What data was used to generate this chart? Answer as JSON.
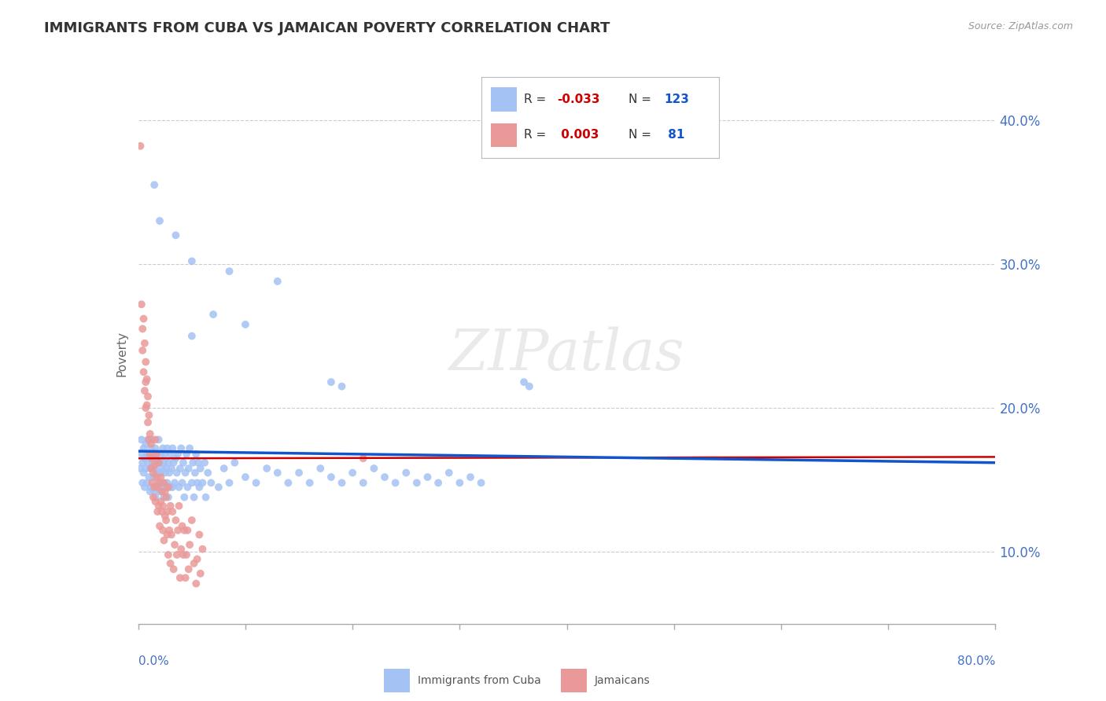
{
  "title": "IMMIGRANTS FROM CUBA VS JAMAICAN POVERTY CORRELATION CHART",
  "source": "Source: ZipAtlas.com",
  "ylabel": "Poverty",
  "xmin": 0.0,
  "xmax": 0.8,
  "ymin": 0.05,
  "ymax": 0.425,
  "yticks": [
    0.1,
    0.2,
    0.3,
    0.4
  ],
  "ytick_labels": [
    "10.0%",
    "20.0%",
    "30.0%",
    "40.0%"
  ],
  "blue_color": "#a4c2f4",
  "pink_color": "#ea9999",
  "blue_line_color": "#1155cc",
  "pink_line_color": "#cc0000",
  "R_blue": -0.033,
  "N_blue": 123,
  "R_pink": 0.003,
  "N_pink": 81,
  "legend_label_blue": "Immigrants from Cuba",
  "legend_label_pink": "Jamaicans",
  "watermark": "ZIPatlas",
  "blue_trend_start": 0.17,
  "blue_trend_end": 0.162,
  "pink_trend_start": 0.165,
  "pink_trend_end": 0.166,
  "blue_points": [
    [
      0.002,
      0.158
    ],
    [
      0.003,
      0.168
    ],
    [
      0.003,
      0.178
    ],
    [
      0.004,
      0.148
    ],
    [
      0.004,
      0.162
    ],
    [
      0.005,
      0.172
    ],
    [
      0.005,
      0.155
    ],
    [
      0.006,
      0.165
    ],
    [
      0.006,
      0.145
    ],
    [
      0.007,
      0.175
    ],
    [
      0.007,
      0.158
    ],
    [
      0.008,
      0.168
    ],
    [
      0.008,
      0.148
    ],
    [
      0.009,
      0.162
    ],
    [
      0.009,
      0.178
    ],
    [
      0.01,
      0.152
    ],
    [
      0.01,
      0.168
    ],
    [
      0.011,
      0.142
    ],
    [
      0.011,
      0.158
    ],
    [
      0.012,
      0.172
    ],
    [
      0.012,
      0.145
    ],
    [
      0.013,
      0.162
    ],
    [
      0.013,
      0.178
    ],
    [
      0.014,
      0.152
    ],
    [
      0.014,
      0.168
    ],
    [
      0.015,
      0.142
    ],
    [
      0.015,
      0.158
    ],
    [
      0.016,
      0.172
    ],
    [
      0.016,
      0.138
    ],
    [
      0.017,
      0.155
    ],
    [
      0.017,
      0.168
    ],
    [
      0.018,
      0.145
    ],
    [
      0.018,
      0.162
    ],
    [
      0.019,
      0.178
    ],
    [
      0.019,
      0.148
    ],
    [
      0.02,
      0.162
    ],
    [
      0.02,
      0.142
    ],
    [
      0.021,
      0.155
    ],
    [
      0.021,
      0.168
    ],
    [
      0.022,
      0.145
    ],
    [
      0.022,
      0.158
    ],
    [
      0.023,
      0.172
    ],
    [
      0.023,
      0.148
    ],
    [
      0.024,
      0.162
    ],
    [
      0.024,
      0.138
    ],
    [
      0.025,
      0.155
    ],
    [
      0.025,
      0.168
    ],
    [
      0.026,
      0.145
    ],
    [
      0.026,
      0.158
    ],
    [
      0.027,
      0.172
    ],
    [
      0.027,
      0.148
    ],
    [
      0.028,
      0.162
    ],
    [
      0.028,
      0.138
    ],
    [
      0.029,
      0.155
    ],
    [
      0.03,
      0.145
    ],
    [
      0.03,
      0.168
    ],
    [
      0.031,
      0.158
    ],
    [
      0.032,
      0.172
    ],
    [
      0.032,
      0.145
    ],
    [
      0.033,
      0.162
    ],
    [
      0.034,
      0.148
    ],
    [
      0.035,
      0.165
    ],
    [
      0.036,
      0.155
    ],
    [
      0.037,
      0.168
    ],
    [
      0.038,
      0.145
    ],
    [
      0.039,
      0.158
    ],
    [
      0.04,
      0.172
    ],
    [
      0.041,
      0.148
    ],
    [
      0.042,
      0.162
    ],
    [
      0.043,
      0.138
    ],
    [
      0.044,
      0.155
    ],
    [
      0.045,
      0.168
    ],
    [
      0.046,
      0.145
    ],
    [
      0.047,
      0.158
    ],
    [
      0.048,
      0.172
    ],
    [
      0.05,
      0.148
    ],
    [
      0.051,
      0.162
    ],
    [
      0.052,
      0.138
    ],
    [
      0.053,
      0.155
    ],
    [
      0.054,
      0.168
    ],
    [
      0.055,
      0.148
    ],
    [
      0.056,
      0.162
    ],
    [
      0.057,
      0.145
    ],
    [
      0.058,
      0.158
    ],
    [
      0.06,
      0.148
    ],
    [
      0.062,
      0.162
    ],
    [
      0.063,
      0.138
    ],
    [
      0.065,
      0.155
    ],
    [
      0.068,
      0.148
    ],
    [
      0.075,
      0.145
    ],
    [
      0.08,
      0.158
    ],
    [
      0.085,
      0.148
    ],
    [
      0.09,
      0.162
    ],
    [
      0.1,
      0.152
    ],
    [
      0.11,
      0.148
    ],
    [
      0.12,
      0.158
    ],
    [
      0.13,
      0.155
    ],
    [
      0.14,
      0.148
    ],
    [
      0.15,
      0.155
    ],
    [
      0.16,
      0.148
    ],
    [
      0.17,
      0.158
    ],
    [
      0.18,
      0.152
    ],
    [
      0.19,
      0.148
    ],
    [
      0.2,
      0.155
    ],
    [
      0.21,
      0.148
    ],
    [
      0.22,
      0.158
    ],
    [
      0.23,
      0.152
    ],
    [
      0.24,
      0.148
    ],
    [
      0.25,
      0.155
    ],
    [
      0.26,
      0.148
    ],
    [
      0.27,
      0.152
    ],
    [
      0.28,
      0.148
    ],
    [
      0.29,
      0.155
    ],
    [
      0.3,
      0.148
    ],
    [
      0.31,
      0.152
    ],
    [
      0.32,
      0.148
    ],
    [
      0.05,
      0.25
    ],
    [
      0.05,
      0.302
    ],
    [
      0.035,
      0.32
    ],
    [
      0.02,
      0.33
    ],
    [
      0.07,
      0.265
    ],
    [
      0.085,
      0.295
    ],
    [
      0.1,
      0.258
    ],
    [
      0.13,
      0.288
    ],
    [
      0.015,
      0.355
    ],
    [
      0.18,
      0.218
    ],
    [
      0.19,
      0.215
    ],
    [
      0.36,
      0.218
    ],
    [
      0.365,
      0.215
    ]
  ],
  "pink_points": [
    [
      0.002,
      0.382
    ],
    [
      0.003,
      0.272
    ],
    [
      0.004,
      0.255
    ],
    [
      0.004,
      0.24
    ],
    [
      0.005,
      0.262
    ],
    [
      0.005,
      0.225
    ],
    [
      0.006,
      0.212
    ],
    [
      0.006,
      0.245
    ],
    [
      0.007,
      0.2
    ],
    [
      0.007,
      0.218
    ],
    [
      0.007,
      0.232
    ],
    [
      0.008,
      0.202
    ],
    [
      0.008,
      0.22
    ],
    [
      0.009,
      0.19
    ],
    [
      0.009,
      0.208
    ],
    [
      0.01,
      0.178
    ],
    [
      0.01,
      0.195
    ],
    [
      0.011,
      0.168
    ],
    [
      0.011,
      0.182
    ],
    [
      0.012,
      0.158
    ],
    [
      0.012,
      0.175
    ],
    [
      0.013,
      0.148
    ],
    [
      0.013,
      0.165
    ],
    [
      0.014,
      0.138
    ],
    [
      0.014,
      0.155
    ],
    [
      0.015,
      0.145
    ],
    [
      0.015,
      0.16
    ],
    [
      0.016,
      0.178
    ],
    [
      0.016,
      0.135
    ],
    [
      0.017,
      0.152
    ],
    [
      0.017,
      0.168
    ],
    [
      0.018,
      0.128
    ],
    [
      0.018,
      0.145
    ],
    [
      0.019,
      0.162
    ],
    [
      0.019,
      0.132
    ],
    [
      0.02,
      0.148
    ],
    [
      0.02,
      0.118
    ],
    [
      0.021,
      0.135
    ],
    [
      0.021,
      0.152
    ],
    [
      0.022,
      0.128
    ],
    [
      0.022,
      0.142
    ],
    [
      0.023,
      0.115
    ],
    [
      0.023,
      0.132
    ],
    [
      0.024,
      0.148
    ],
    [
      0.024,
      0.108
    ],
    [
      0.025,
      0.125
    ],
    [
      0.025,
      0.142
    ],
    [
      0.026,
      0.122
    ],
    [
      0.026,
      0.138
    ],
    [
      0.027,
      0.112
    ],
    [
      0.027,
      0.128
    ],
    [
      0.028,
      0.145
    ],
    [
      0.028,
      0.098
    ],
    [
      0.029,
      0.115
    ],
    [
      0.03,
      0.132
    ],
    [
      0.03,
      0.092
    ],
    [
      0.031,
      0.112
    ],
    [
      0.032,
      0.128
    ],
    [
      0.033,
      0.088
    ],
    [
      0.034,
      0.105
    ],
    [
      0.035,
      0.122
    ],
    [
      0.036,
      0.098
    ],
    [
      0.037,
      0.115
    ],
    [
      0.038,
      0.132
    ],
    [
      0.039,
      0.082
    ],
    [
      0.04,
      0.102
    ],
    [
      0.041,
      0.118
    ],
    [
      0.042,
      0.098
    ],
    [
      0.043,
      0.115
    ],
    [
      0.044,
      0.082
    ],
    [
      0.045,
      0.098
    ],
    [
      0.046,
      0.115
    ],
    [
      0.047,
      0.088
    ],
    [
      0.048,
      0.105
    ],
    [
      0.05,
      0.122
    ],
    [
      0.052,
      0.092
    ],
    [
      0.054,
      0.078
    ],
    [
      0.055,
      0.095
    ],
    [
      0.057,
      0.112
    ],
    [
      0.058,
      0.085
    ],
    [
      0.06,
      0.102
    ],
    [
      0.21,
      0.165
    ]
  ]
}
